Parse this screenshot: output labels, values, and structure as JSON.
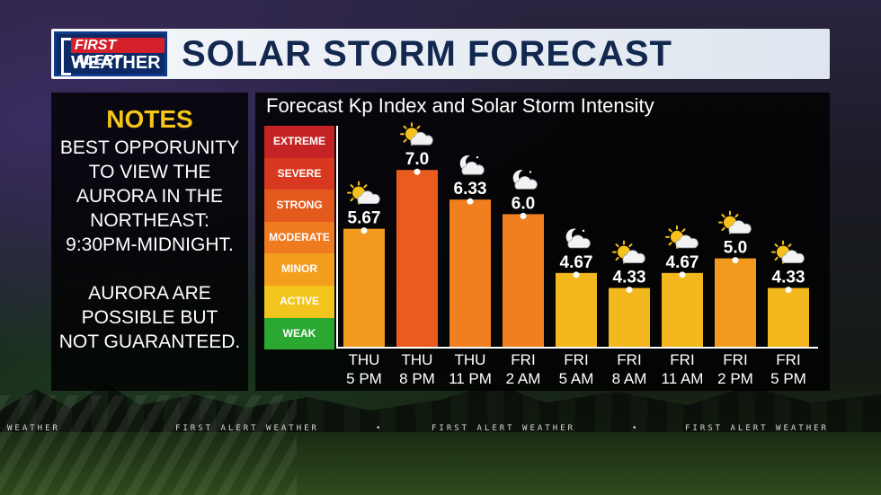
{
  "header": {
    "logo_top": "FIRST ALERT",
    "logo_bottom": "WEATHER",
    "title": "SOLAR STORM FORECAST"
  },
  "notes": {
    "heading": "NOTES",
    "body": "BEST OPPORUNITY\nTO VIEW THE\nAURORA IN THE\nNORTHEAST:\n9:30PM-MIDNIGHT.\n\nAURORA ARE\nPOSSIBLE BUT\nNOT GUARANTEED."
  },
  "scale": [
    {
      "label": "EXTREME",
      "color": "#c62424"
    },
    {
      "label": "SEVERE",
      "color": "#d8381f"
    },
    {
      "label": "STRONG",
      "color": "#e45a1d"
    },
    {
      "label": "MODERATE",
      "color": "#ef7a1f"
    },
    {
      "label": "MINOR",
      "color": "#f49e1e"
    },
    {
      "label": "ACTIVE",
      "color": "#f3c41e"
    },
    {
      "label": "WEAK",
      "color": "#2aa832"
    }
  ],
  "chart_data": {
    "type": "bar",
    "title": "Forecast Kp Index and Solar Storm Intensity",
    "categories": [
      [
        "THU",
        "5 PM"
      ],
      [
        "THU",
        "8 PM"
      ],
      [
        "THU",
        "11 PM"
      ],
      [
        "FRI",
        "2 AM"
      ],
      [
        "FRI",
        "5 AM"
      ],
      [
        "FRI",
        "8 AM"
      ],
      [
        "FRI",
        "11 AM"
      ],
      [
        "FRI",
        "2 PM"
      ],
      [
        "FRI",
        "5 PM"
      ]
    ],
    "values": [
      5.67,
      7.0,
      6.33,
      6.0,
      4.67,
      4.33,
      4.67,
      5.0,
      4.33
    ],
    "value_labels": [
      "5.67",
      "7.0",
      "6.33",
      "6.0",
      "4.67",
      "4.33",
      "4.67",
      "5.0",
      "4.33"
    ],
    "bar_colors": [
      "#f29a1d",
      "#e95c1e",
      "#f0801f",
      "#f0801f",
      "#f2b81e",
      "#f2b81e",
      "#f2b81e",
      "#f29a1d",
      "#f2b81e"
    ],
    "icons": [
      "partly-sunny-icon",
      "partly-sunny-icon",
      "night-cloud-icon",
      "night-cloud-icon",
      "night-cloud-icon",
      "partly-sunny-icon",
      "partly-sunny-icon",
      "partly-sunny-icon",
      "partly-sunny-icon"
    ],
    "ylim": [
      3,
      8
    ],
    "grid": false,
    "legend": "none"
  },
  "ticker": {
    "items": [
      "WEATHER",
      "FIRST ALERT WEATHER",
      "•",
      "FIRST ALERT WEATHER",
      "•",
      "FIRST ALERT WEATHER"
    ]
  }
}
